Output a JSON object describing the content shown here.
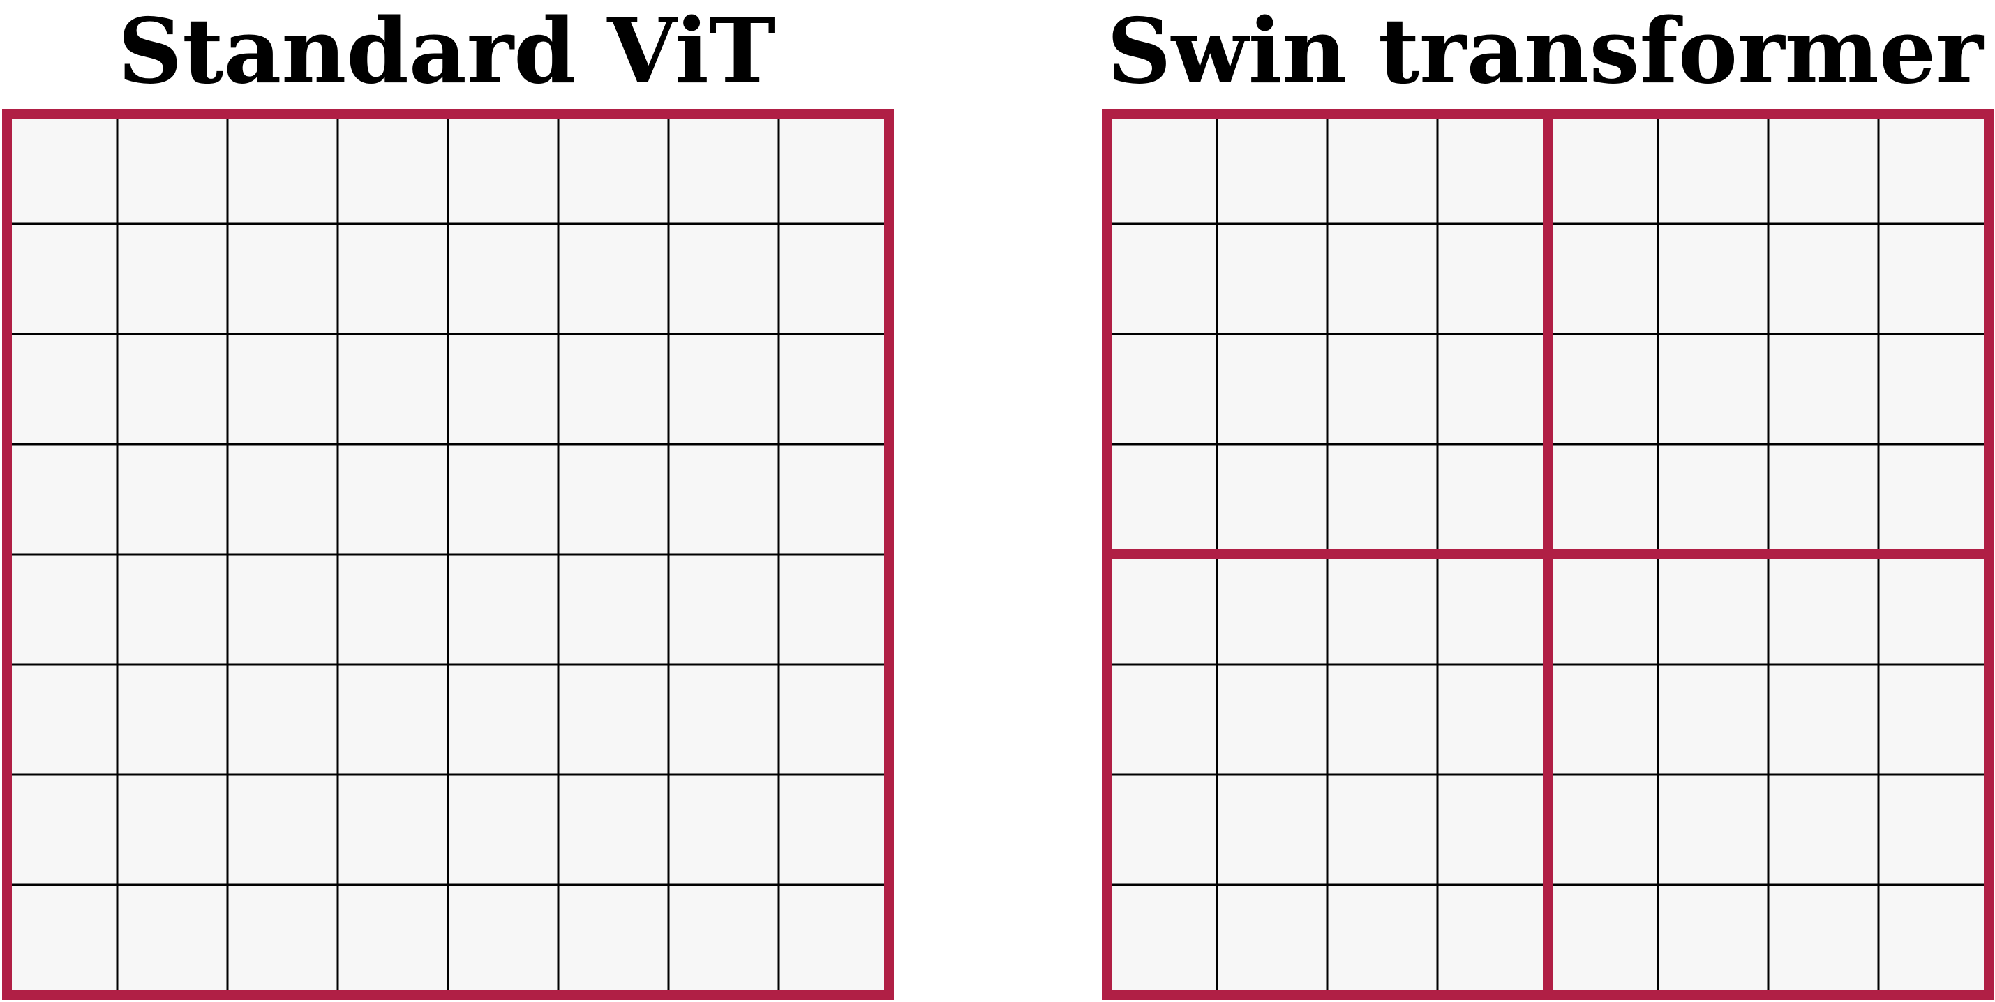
{
  "colors": {
    "window_border": "#b01f45",
    "cell_fill": "#f7f7f7",
    "grid_line": "#000000",
    "background": "#ffffff"
  },
  "panels": [
    {
      "id": "standard-vit",
      "title": "Standard ViT",
      "grid_size": 8,
      "window_divisions": 1
    },
    {
      "id": "swin-transformer",
      "title": "Swin transformer",
      "grid_size": 8,
      "window_divisions": 2
    }
  ]
}
